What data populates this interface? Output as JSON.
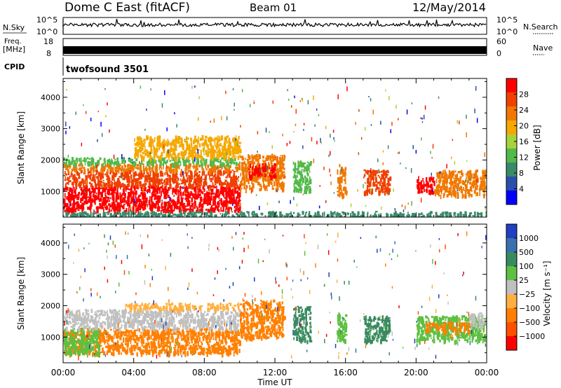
{
  "header": {
    "station": "Dome C East (fitACF)",
    "beam": "Beam 01",
    "date": "12/May/2014"
  },
  "top_panels": {
    "nsky_label": "N.Sky",
    "nsky_ticks": [
      "10^5",
      "10^0"
    ],
    "nsearch_label": "N.Search",
    "nsearch_ticks": [
      "10^5",
      "10^0"
    ],
    "freq_label_1": "Freq.",
    "freq_label_2": "[MHz]",
    "freq_ticks": [
      "18",
      "8"
    ],
    "nave_label": "Nave",
    "nave_ticks": [
      "60",
      "0"
    ],
    "cpid_label": "CPID",
    "cpid_value": "twofsound 3501"
  },
  "colors": {
    "power_scale": [
      "#0000ff",
      "#2a4fa8",
      "#3a8a6a",
      "#52b94a",
      "#a8d23c",
      "#f5a800",
      "#f07800",
      "#f04000",
      "#ff0000"
    ],
    "velocity_scale": [
      "#2040c0",
      "#3a70b0",
      "#3a8a60",
      "#5cc040",
      "#c0c0c0",
      "#ffb040",
      "#ff8000",
      "#ff5000",
      "#ff0000"
    ]
  },
  "chart_data": [
    {
      "type": "heatmap",
      "name": "power",
      "ylabel": "Slant Range [km]",
      "y_ticks": [
        "1000",
        "2000",
        "3000",
        "4000"
      ],
      "ylim": [
        180,
        4600
      ],
      "colorbar_label": "Power [dB]",
      "colorbar_ticks": [
        "4",
        "8",
        "12",
        "16",
        "20",
        "24",
        "28"
      ],
      "colorbar_range": [
        0,
        32
      ],
      "blobs": [
        {
          "t0": 0.0,
          "t1": 10.0,
          "r0": 400,
          "r1": 1200,
          "color": "#ff0000"
        },
        {
          "t0": 0.0,
          "t1": 10.0,
          "r0": 1200,
          "r1": 1700,
          "color": "#f04000"
        },
        {
          "t0": 0.0,
          "t1": 10.0,
          "r0": 1700,
          "r1": 1900,
          "color": "#f07800"
        },
        {
          "t0": 0.0,
          "t1": 10.0,
          "r0": 1900,
          "r1": 2100,
          "color": "#52b94a"
        },
        {
          "t0": 4.0,
          "t1": 10.0,
          "r0": 2100,
          "r1": 2800,
          "color": "#f5a800"
        },
        {
          "t0": 10.0,
          "t1": 12.5,
          "r0": 1100,
          "r1": 2200,
          "color": "#f07800"
        },
        {
          "t0": 10.5,
          "t1": 12.0,
          "r0": 1500,
          "r1": 1900,
          "color": "#ff0000"
        },
        {
          "t0": 13.0,
          "t1": 14.0,
          "r0": 1000,
          "r1": 2000,
          "color": "#52b94a"
        },
        {
          "t0": 15.5,
          "t1": 16.0,
          "r0": 900,
          "r1": 1900,
          "color": "#f07800"
        },
        {
          "t0": 17.0,
          "t1": 18.5,
          "r0": 1000,
          "r1": 1700,
          "color": "#f04000"
        },
        {
          "t0": 20.0,
          "t1": 21.0,
          "r0": 1000,
          "r1": 1500,
          "color": "#ff0000"
        },
        {
          "t0": 21.0,
          "t1": 24.0,
          "r0": 900,
          "r1": 1700,
          "color": "#f07800"
        },
        {
          "t0": 0.0,
          "t1": 24.0,
          "r0": 220,
          "r1": 380,
          "color": "#3a8a6a"
        }
      ]
    },
    {
      "type": "heatmap",
      "name": "velocity",
      "ylabel": "Slant Range [km]",
      "y_ticks": [
        "1000",
        "2000",
        "3000",
        "4000"
      ],
      "ylim": [
        180,
        4600
      ],
      "colorbar_label": "Velocity [m s⁻¹]",
      "colorbar_ticks": [
        "1000",
        "500",
        "100",
        "25",
        "−25",
        "−100",
        "−500",
        "−1000"
      ],
      "x_ticks": [
        "00:00",
        "04:00",
        "08:00",
        "12:00",
        "16:00",
        "20:00",
        "00:00"
      ],
      "xlabel": "Time UT",
      "xlim": [
        0,
        24
      ],
      "blobs": [
        {
          "t0": 0.0,
          "t1": 10.0,
          "r0": 500,
          "r1": 1300,
          "color": "#ff8000"
        },
        {
          "t0": 0.0,
          "t1": 2.0,
          "r0": 500,
          "r1": 1300,
          "color": "#5cc040"
        },
        {
          "t0": 0.0,
          "t1": 10.0,
          "r0": 1300,
          "r1": 1900,
          "color": "#c0c0c0"
        },
        {
          "t0": 3.5,
          "t1": 10.0,
          "r0": 1900,
          "r1": 2100,
          "color": "#ffb040"
        },
        {
          "t0": 10.0,
          "t1": 12.5,
          "r0": 1000,
          "r1": 2200,
          "color": "#ff8000"
        },
        {
          "t0": 13.0,
          "t1": 14.0,
          "r0": 900,
          "r1": 2000,
          "color": "#3a8a60"
        },
        {
          "t0": 15.5,
          "t1": 16.0,
          "r0": 900,
          "r1": 1800,
          "color": "#5cc040"
        },
        {
          "t0": 17.0,
          "t1": 18.5,
          "r0": 900,
          "r1": 1700,
          "color": "#3a8a60"
        },
        {
          "t0": 20.0,
          "t1": 24.0,
          "r0": 900,
          "r1": 1700,
          "color": "#5cc040"
        },
        {
          "t0": 20.5,
          "t1": 23.0,
          "r0": 1200,
          "r1": 1500,
          "color": "#ff8000"
        },
        {
          "t0": 23.0,
          "t1": 24.0,
          "r0": 1300,
          "r1": 1800,
          "color": "#c0c0c0"
        }
      ]
    }
  ]
}
